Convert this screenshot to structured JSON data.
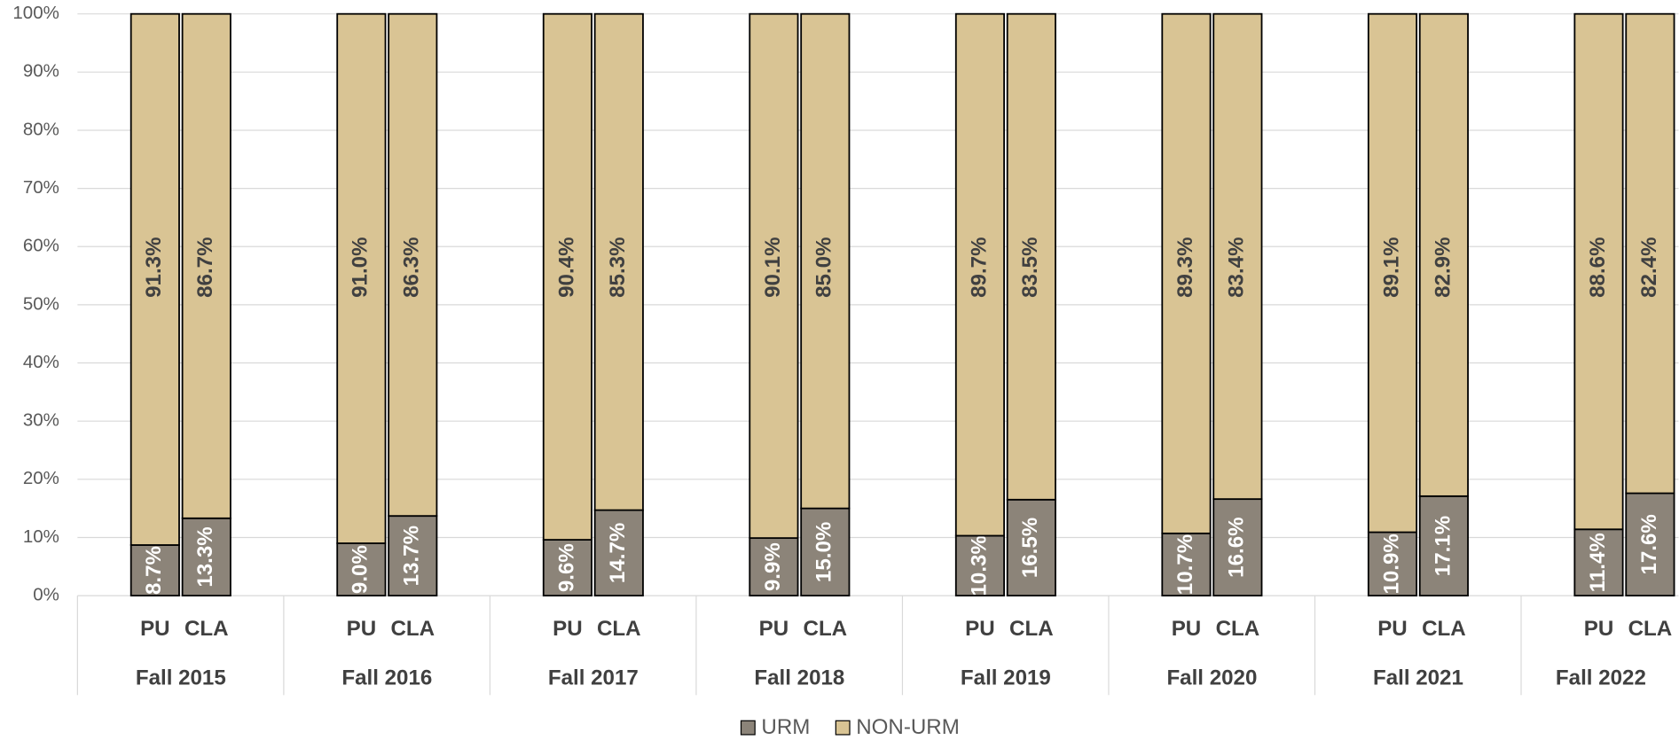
{
  "chart_data": {
    "type": "stacked_bar",
    "groups": [
      "Fall 2015",
      "Fall 2016",
      "Fall 2017",
      "Fall 2018",
      "Fall 2019",
      "Fall 2020",
      "Fall 2021",
      "Fall 2022"
    ],
    "categories": [
      "PU",
      "CLA",
      "PU",
      "CLA",
      "PU",
      "CLA",
      "PU",
      "CLA",
      "PU",
      "CLA",
      "PU",
      "CLA",
      "PU",
      "CLA",
      "PU",
      "CLA"
    ],
    "series": [
      {
        "name": "URM",
        "color": "#8c8479",
        "values": [
          8.7,
          13.3,
          9.0,
          13.7,
          9.6,
          14.7,
          9.9,
          15.0,
          10.3,
          16.5,
          10.7,
          16.6,
          10.9,
          17.1,
          11.4,
          17.6
        ],
        "value_labels": [
          "8.7%",
          "13.3%",
          "9.0%",
          "13.7%",
          "9.6%",
          "14.7%",
          "9.9%",
          "15.0%",
          "10.3%",
          "16.5%",
          "10.7%",
          "16.6%",
          "10.9%",
          "17.1%",
          "11.4%",
          "17.6%"
        ],
        "label_color": "#ffffff"
      },
      {
        "name": "NON-URM",
        "color": "#d9c494",
        "values": [
          91.3,
          86.7,
          91.0,
          86.3,
          90.4,
          85.3,
          90.1,
          85.0,
          89.7,
          83.5,
          89.3,
          83.4,
          89.1,
          82.9,
          88.6,
          82.4
        ],
        "value_labels": [
          "91.3%",
          "86.7%",
          "91.0%",
          "86.3%",
          "90.4%",
          "85.3%",
          "90.1%",
          "85.0%",
          "89.7%",
          "83.5%",
          "89.3%",
          "83.4%",
          "89.1%",
          "82.9%",
          "88.6%",
          "82.4%"
        ],
        "label_color": "#404040"
      }
    ],
    "ylim": [
      0,
      100
    ],
    "yticks": [
      {
        "value": 0,
        "label": "0%"
      },
      {
        "value": 10,
        "label": "10%"
      },
      {
        "value": 20,
        "label": "20%"
      },
      {
        "value": 30,
        "label": "30%"
      },
      {
        "value": 40,
        "label": "40%"
      },
      {
        "value": 50,
        "label": "50%"
      },
      {
        "value": 60,
        "label": "60%"
      },
      {
        "value": 70,
        "label": "70%"
      },
      {
        "value": 80,
        "label": "80%"
      },
      {
        "value": 90,
        "label": "90%"
      },
      {
        "value": 100,
        "label": "100%"
      }
    ],
    "grid": true,
    "legend": "bottom"
  }
}
